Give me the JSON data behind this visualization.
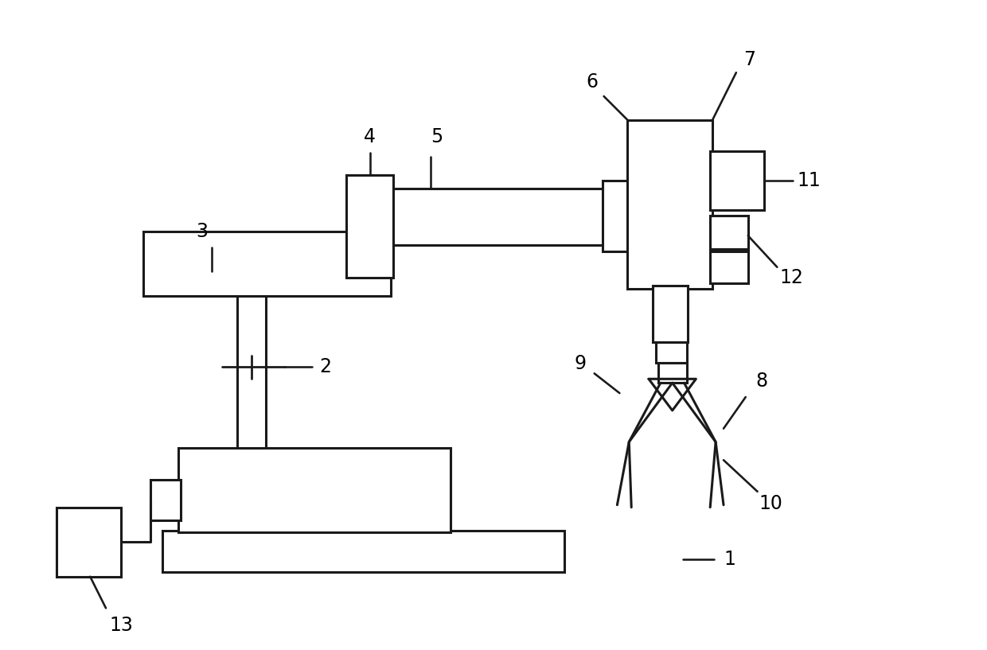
{
  "background_color": "#ffffff",
  "line_color": "#1a1a1a",
  "line_width": 2.2,
  "fig_width": 12.4,
  "fig_height": 8.17,
  "dpi": 100
}
